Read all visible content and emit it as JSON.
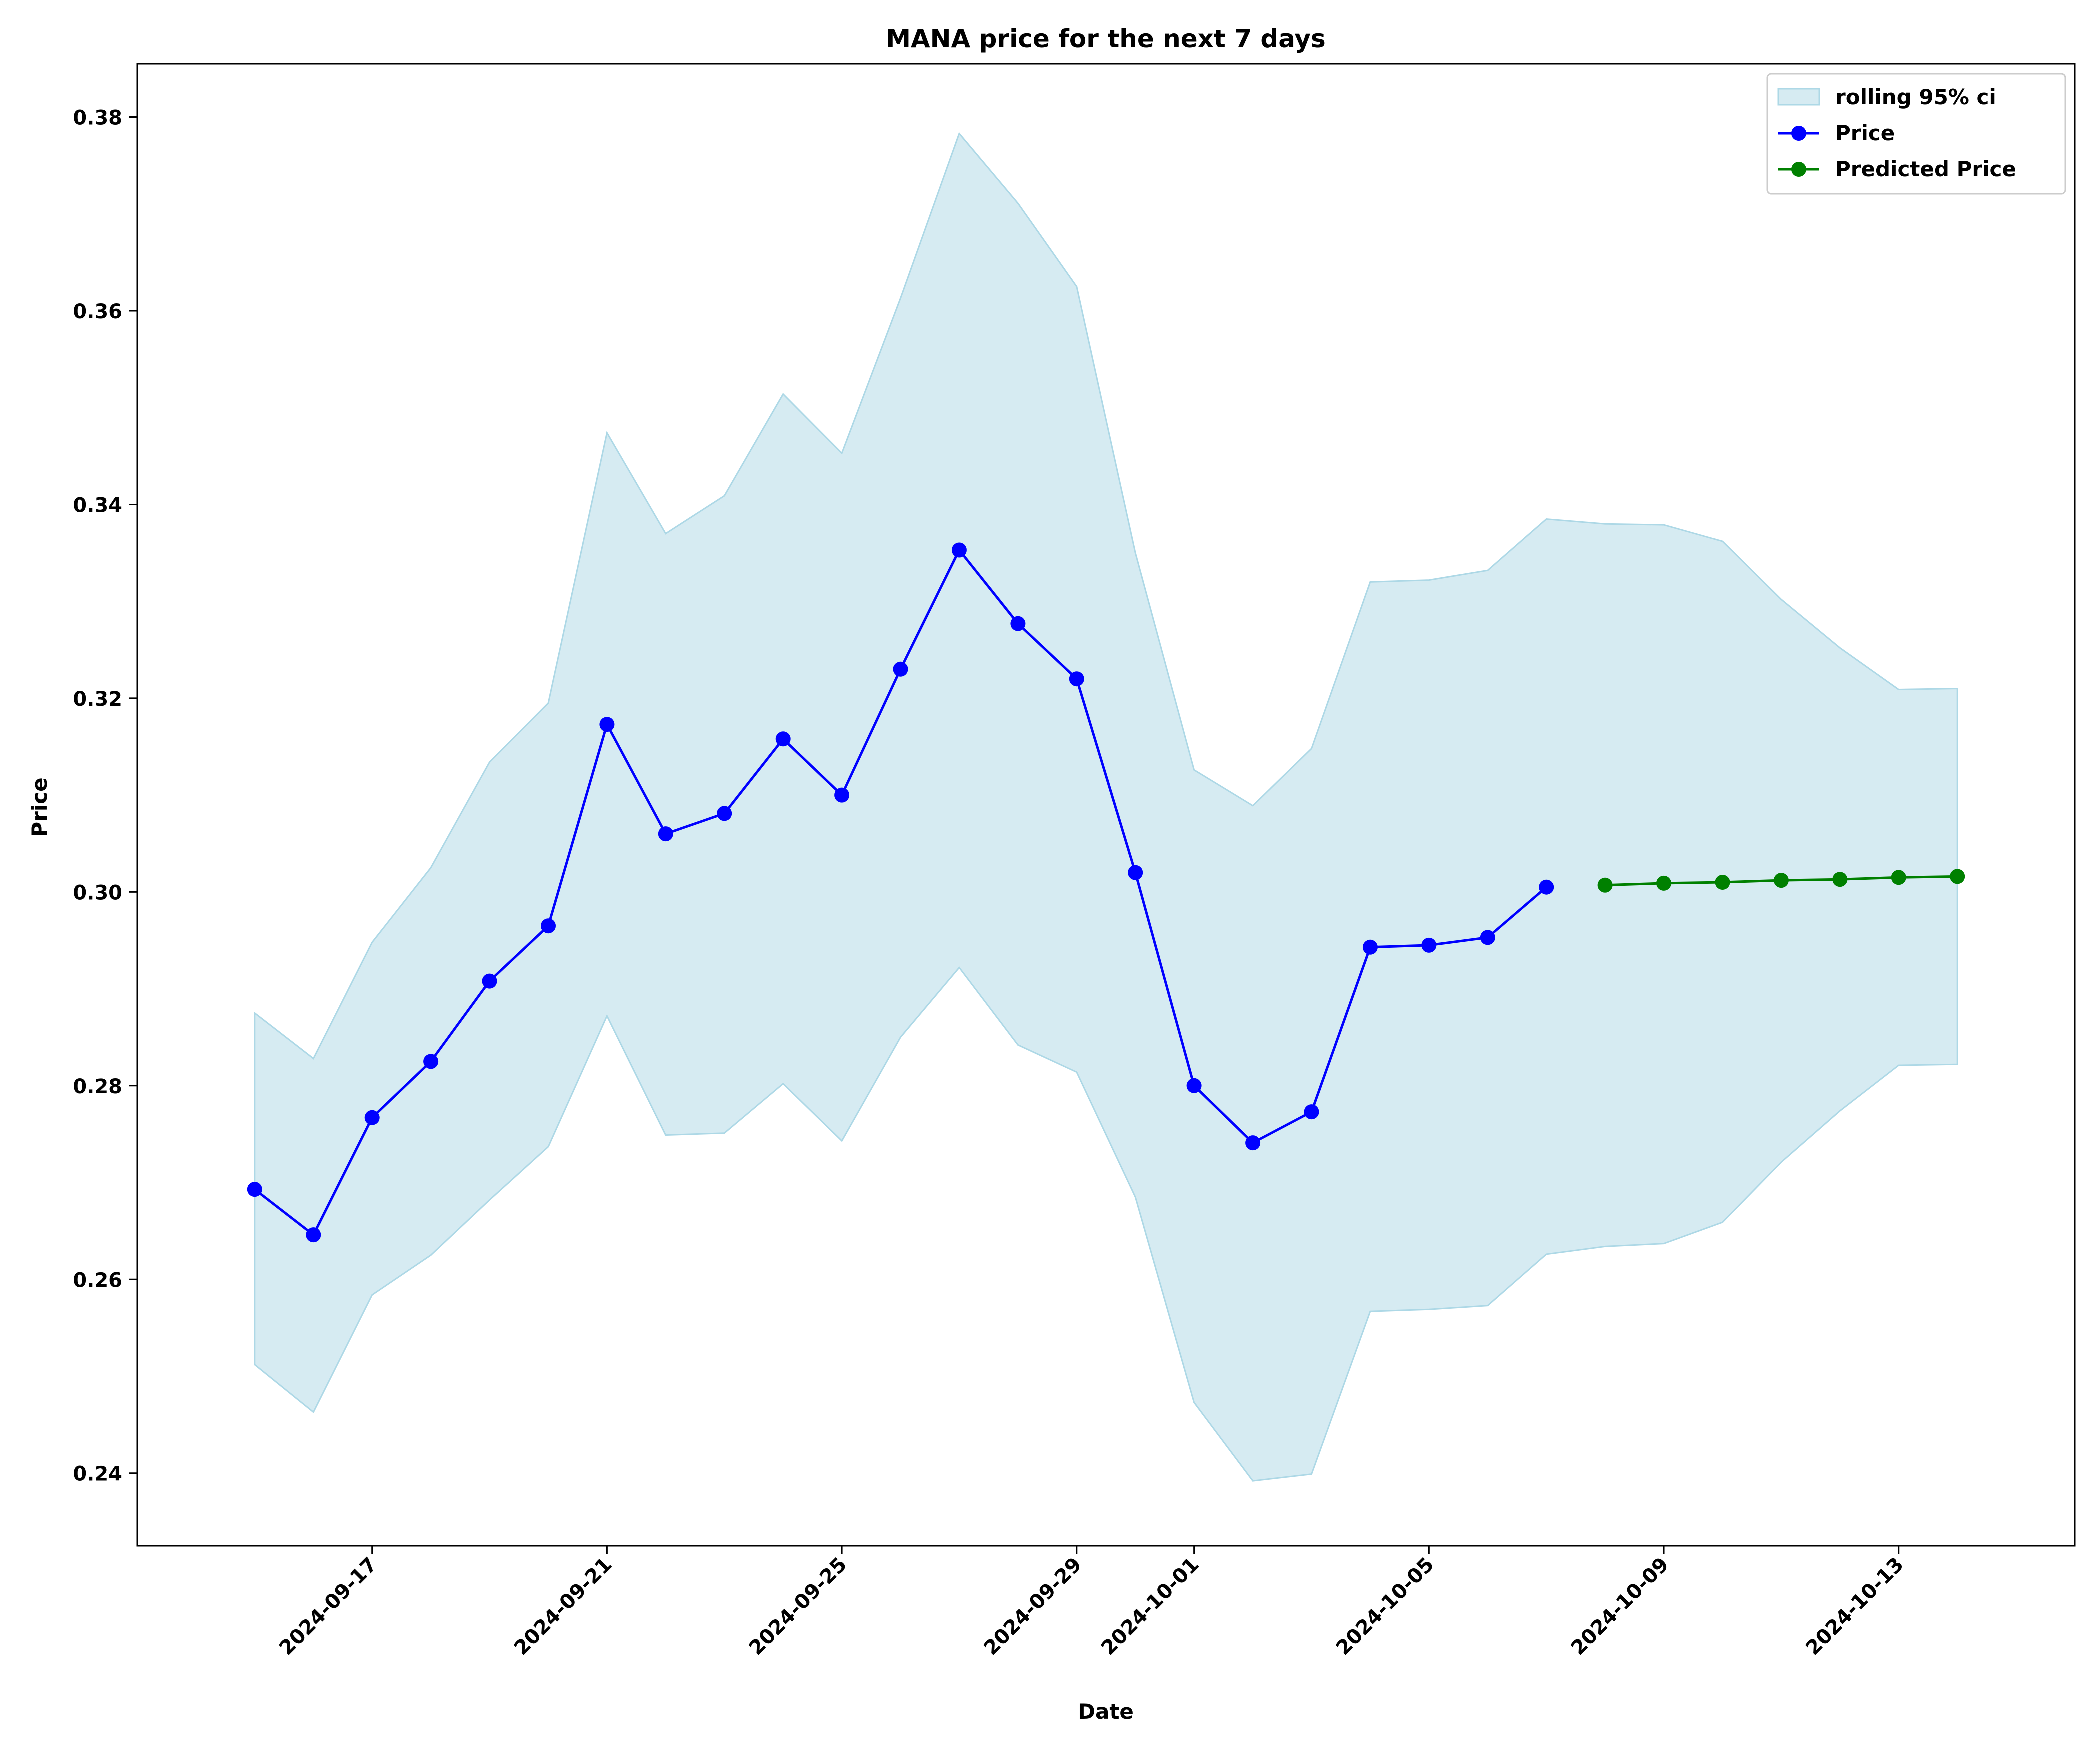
{
  "chart_data": {
    "type": "line",
    "title": "MANA price for the next 7 days",
    "xlabel": "Date",
    "ylabel": "Price",
    "xlim": [
      "2024-09-13",
      "2024-10-16"
    ],
    "ylim": [
      0.2325,
      0.3855
    ],
    "x_ticks": [
      "2024-09-17",
      "2024-09-21",
      "2024-09-25",
      "2024-09-29",
      "2024-10-01",
      "2024-10-05",
      "2024-10-09",
      "2024-10-13"
    ],
    "y_ticks": [
      0.24,
      0.26,
      0.28,
      0.3,
      0.32,
      0.34,
      0.36,
      0.38
    ],
    "y_tick_labels": [
      "0.24",
      "0.26",
      "0.28",
      "0.30",
      "0.32",
      "0.34",
      "0.36",
      "0.38"
    ],
    "grid": false,
    "legend_position": "top-right",
    "band": {
      "name": "rolling 95% ci",
      "color": "#add8e6",
      "x": [
        "2024-09-15",
        "2024-09-16",
        "2024-09-17",
        "2024-09-18",
        "2024-09-19",
        "2024-09-20",
        "2024-09-21",
        "2024-09-22",
        "2024-09-23",
        "2024-09-24",
        "2024-09-25",
        "2024-09-26",
        "2024-09-27",
        "2024-09-28",
        "2024-09-29",
        "2024-09-30",
        "2024-10-01",
        "2024-10-02",
        "2024-10-03",
        "2024-10-04",
        "2024-10-05",
        "2024-10-06",
        "2024-10-07",
        "2024-10-08",
        "2024-10-09",
        "2024-10-10",
        "2024-10-11",
        "2024-10-12",
        "2024-10-13",
        "2024-10-14"
      ],
      "upper": [
        0.2875,
        0.2828,
        0.2948,
        0.3025,
        0.3134,
        0.3195,
        0.3474,
        0.337,
        0.3409,
        0.3514,
        0.3453,
        0.3613,
        0.3783,
        0.3711,
        0.3625,
        0.335,
        0.3126,
        0.3089,
        0.3148,
        0.332,
        0.3322,
        0.3332,
        0.3385,
        0.338,
        0.3379,
        0.3362,
        0.3302,
        0.3252,
        0.3209,
        0.321
      ],
      "lower": [
        0.2512,
        0.2463,
        0.2584,
        0.2625,
        0.2682,
        0.2737,
        0.2872,
        0.2749,
        0.2751,
        0.2802,
        0.2743,
        0.285,
        0.2922,
        0.2842,
        0.2814,
        0.2685,
        0.2473,
        0.2392,
        0.2399,
        0.2567,
        0.2569,
        0.2573,
        0.2626,
        0.2634,
        0.2637,
        0.2659,
        0.2721,
        0.2774,
        0.2821,
        0.2822
      ]
    },
    "series": [
      {
        "name": "Price",
        "color": "#0000ff",
        "x": [
          "2024-09-15",
          "2024-09-16",
          "2024-09-17",
          "2024-09-18",
          "2024-09-19",
          "2024-09-20",
          "2024-09-21",
          "2024-09-22",
          "2024-09-23",
          "2024-09-24",
          "2024-09-25",
          "2024-09-26",
          "2024-09-27",
          "2024-09-28",
          "2024-09-29",
          "2024-09-30",
          "2024-10-01",
          "2024-10-02",
          "2024-10-03",
          "2024-10-04",
          "2024-10-05",
          "2024-10-06",
          "2024-10-07"
        ],
        "y": [
          0.2693,
          0.2646,
          0.2767,
          0.2825,
          0.2908,
          0.2965,
          0.3173,
          0.306,
          0.3081,
          0.3158,
          0.31,
          0.323,
          0.3353,
          0.3277,
          0.322,
          0.302,
          0.28,
          0.2741,
          0.2773,
          0.2943,
          0.2945,
          0.2953,
          0.3005
        ]
      },
      {
        "name": "Predicted Price",
        "color": "#008000",
        "x": [
          "2024-10-08",
          "2024-10-09",
          "2024-10-10",
          "2024-10-11",
          "2024-10-12",
          "2024-10-13",
          "2024-10-14"
        ],
        "y": [
          0.3007,
          0.3009,
          0.301,
          0.3012,
          0.3013,
          0.3015,
          0.3016
        ]
      }
    ]
  }
}
